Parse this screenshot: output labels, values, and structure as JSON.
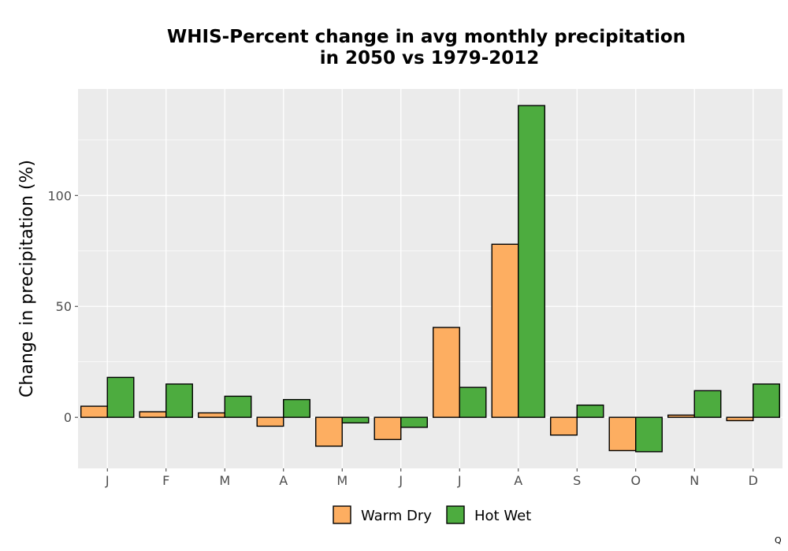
{
  "chart_data": {
    "type": "bar",
    "title_lines": [
      "WHIS-Percent change in avg monthly precipitation",
      "in 2050 vs 1979-2012"
    ],
    "xlabel": "",
    "ylabel": "Change in precipitation (%)",
    "categories": [
      "J",
      "F",
      "M",
      "A",
      "M",
      "J",
      "J",
      "A",
      "S",
      "O",
      "N",
      "D"
    ],
    "series": [
      {
        "name": "Warm Dry",
        "color": "#fdae61",
        "values": [
          5,
          2.5,
          2,
          -4,
          -13,
          -10,
          40.5,
          78,
          -8,
          -15,
          1,
          -1.5
        ]
      },
      {
        "name": "Hot Wet",
        "color": "#4dac3f",
        "values": [
          18,
          15,
          9.5,
          8,
          -2.5,
          -4.5,
          13.5,
          140.5,
          5.5,
          -15.5,
          12,
          15
        ]
      }
    ],
    "yticks": [
      0,
      50,
      100
    ],
    "ylim": [
      -23,
      148
    ],
    "grid": true,
    "legend_position": "bottom",
    "panel_color": "#ebebeb"
  },
  "footer_mark": "Q"
}
